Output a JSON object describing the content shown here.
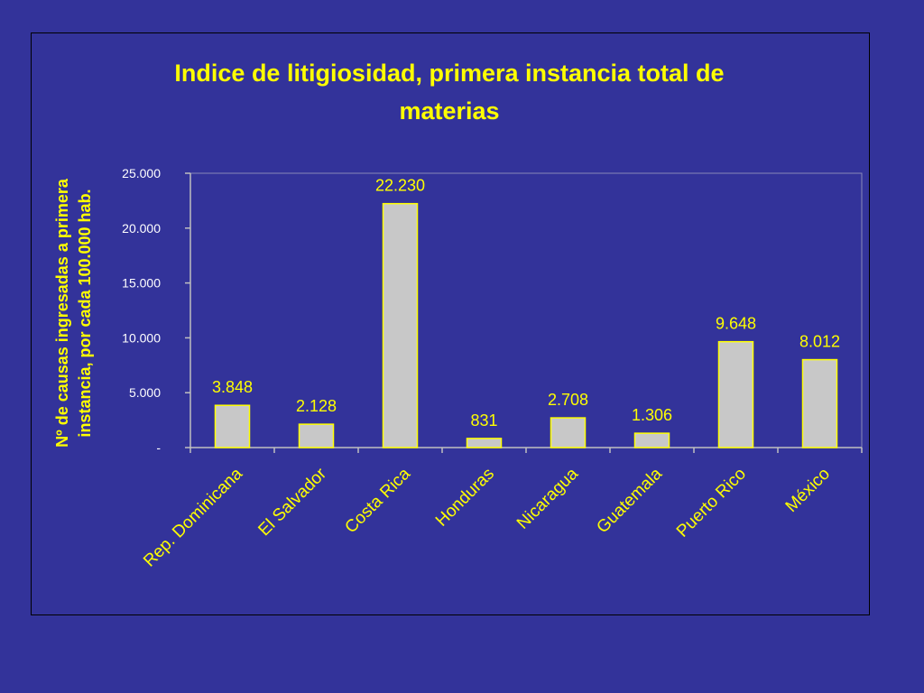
{
  "chart_data": {
    "type": "bar",
    "title_lines": [
      "Indice de litigiosidad, primera instancia total de",
      "materias"
    ],
    "ylabel_lines": [
      "Nº de causas ingresadas a primera",
      "instancia, por cada 100.000 hab."
    ],
    "xlabel": "",
    "categories": [
      "Rep. Dominicana",
      "El Salvador",
      "Costa Rica",
      "Honduras",
      "Nicaragua",
      "Guatemala",
      "Puerto Rico",
      "México"
    ],
    "values": [
      3848,
      2128,
      22230,
      831,
      2708,
      1306,
      9648,
      8012
    ],
    "data_labels": [
      "3.848",
      "2.128",
      "22.230",
      "831",
      "2.708",
      "1.306",
      "9.648",
      "8.012"
    ],
    "ylim": [
      0,
      25000
    ],
    "y_ticks": [
      {
        "value": 0,
        "label": "-"
      },
      {
        "value": 5000,
        "label": "5.000"
      },
      {
        "value": 10000,
        "label": "10.000"
      },
      {
        "value": 15000,
        "label": "15.000"
      },
      {
        "value": 20000,
        "label": "20.000"
      },
      {
        "value": 25000,
        "label": "25.000"
      }
    ],
    "grid": false,
    "legend": "none",
    "colors": {
      "background": "#33339a",
      "bar_fill": "#c8c8c8",
      "bar_stroke": "#ffff00",
      "text_yellow": "#ffff00",
      "tick_text": "#ffffff",
      "axis": "#c0c0c0"
    }
  }
}
